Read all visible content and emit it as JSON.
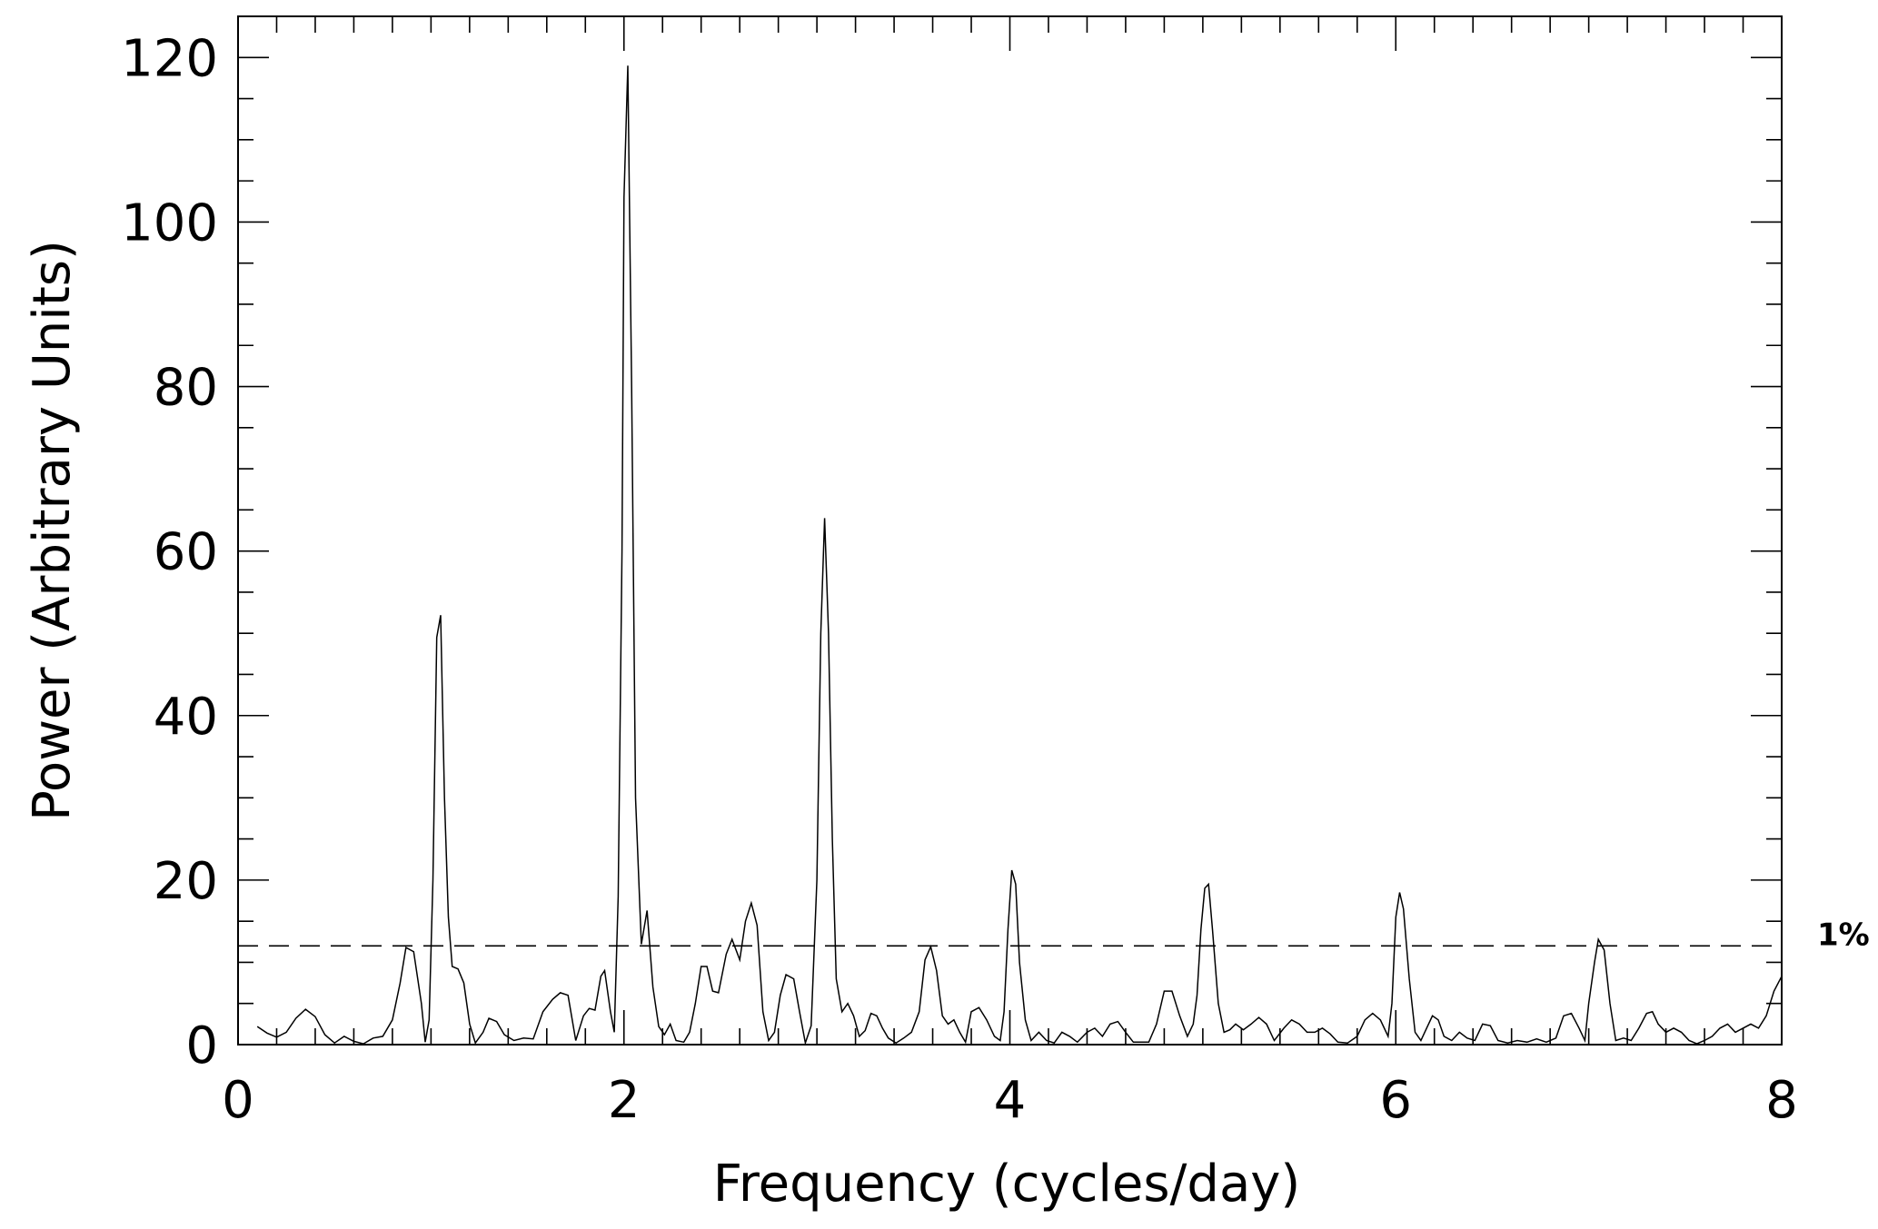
{
  "chart_data": {
    "type": "line",
    "title": "",
    "xlabel": "Frequency (cycles/day)",
    "ylabel": "Power (Arbitrary Units)",
    "xlim": [
      0,
      8
    ],
    "ylim": [
      0,
      125
    ],
    "x_ticks": [
      0,
      2,
      4,
      6,
      8
    ],
    "y_ticks": [
      0,
      20,
      40,
      60,
      80,
      100,
      120
    ],
    "x_minor_step": 0.2,
    "y_minor_step": 5,
    "grid": false,
    "threshold": {
      "label": "1%",
      "value": 12.0,
      "style": "dashed"
    },
    "series": [
      {
        "points": [
          [
            0.1,
            2.2
          ],
          [
            0.15,
            1.4
          ],
          [
            0.2,
            0.9
          ],
          [
            0.25,
            1.5
          ],
          [
            0.3,
            3.2
          ],
          [
            0.35,
            4.3
          ],
          [
            0.4,
            3.4
          ],
          [
            0.45,
            1.2
          ],
          [
            0.5,
            0.2
          ],
          [
            0.55,
            1.0
          ],
          [
            0.6,
            0.4
          ],
          [
            0.65,
            0.1
          ],
          [
            0.7,
            0.8
          ],
          [
            0.75,
            1.0
          ],
          [
            0.8,
            3.0
          ],
          [
            0.84,
            7.5
          ],
          [
            0.87,
            11.8
          ],
          [
            0.91,
            11.3
          ],
          [
            0.95,
            5.0
          ],
          [
            0.97,
            0.3
          ],
          [
            0.99,
            3.0
          ],
          [
            1.01,
            20.0
          ],
          [
            1.03,
            49.5
          ],
          [
            1.05,
            52.2
          ],
          [
            1.07,
            30.0
          ],
          [
            1.09,
            15.5
          ],
          [
            1.11,
            9.5
          ],
          [
            1.14,
            9.2
          ],
          [
            1.17,
            7.5
          ],
          [
            1.2,
            2.5
          ],
          [
            1.23,
            0.2
          ],
          [
            1.27,
            1.5
          ],
          [
            1.3,
            3.2
          ],
          [
            1.34,
            2.8
          ],
          [
            1.38,
            1.2
          ],
          [
            1.43,
            0.5
          ],
          [
            1.48,
            0.8
          ],
          [
            1.53,
            0.7
          ],
          [
            1.58,
            4.0
          ],
          [
            1.63,
            5.5
          ],
          [
            1.67,
            6.3
          ],
          [
            1.71,
            6.0
          ],
          [
            1.75,
            0.5
          ],
          [
            1.79,
            3.5
          ],
          [
            1.82,
            4.4
          ],
          [
            1.85,
            4.2
          ],
          [
            1.88,
            8.3
          ],
          [
            1.9,
            9.0
          ],
          [
            1.93,
            4.0
          ],
          [
            1.95,
            1.5
          ],
          [
            1.97,
            18.0
          ],
          [
            1.99,
            60.0
          ],
          [
            2.0,
            103.0
          ],
          [
            2.02,
            119.0
          ],
          [
            2.04,
            80.0
          ],
          [
            2.06,
            30.0
          ],
          [
            2.09,
            12.2
          ],
          [
            2.12,
            16.3
          ],
          [
            2.15,
            7.0
          ],
          [
            2.18,
            2.2
          ],
          [
            2.21,
            1.2
          ],
          [
            2.24,
            2.5
          ],
          [
            2.27,
            0.5
          ],
          [
            2.31,
            0.3
          ],
          [
            2.34,
            1.5
          ],
          [
            2.37,
            5.0
          ],
          [
            2.4,
            9.5
          ],
          [
            2.43,
            9.5
          ],
          [
            2.46,
            6.5
          ],
          [
            2.49,
            6.3
          ],
          [
            2.53,
            11.0
          ],
          [
            2.56,
            12.8
          ],
          [
            2.6,
            10.3
          ],
          [
            2.63,
            15.0
          ],
          [
            2.66,
            17.2
          ],
          [
            2.69,
            14.5
          ],
          [
            2.72,
            4.0
          ],
          [
            2.75,
            0.5
          ],
          [
            2.78,
            1.5
          ],
          [
            2.81,
            6.0
          ],
          [
            2.84,
            8.5
          ],
          [
            2.88,
            8.0
          ],
          [
            2.91,
            4.0
          ],
          [
            2.94,
            0.2
          ],
          [
            2.97,
            2.3
          ],
          [
            3.0,
            20.0
          ],
          [
            3.02,
            50.0
          ],
          [
            3.04,
            64.0
          ],
          [
            3.06,
            50.0
          ],
          [
            3.08,
            25.0
          ],
          [
            3.1,
            8.0
          ],
          [
            3.13,
            4.0
          ],
          [
            3.16,
            5.0
          ],
          [
            3.19,
            3.5
          ],
          [
            3.22,
            1.0
          ],
          [
            3.25,
            1.7
          ],
          [
            3.28,
            3.8
          ],
          [
            3.31,
            3.5
          ],
          [
            3.34,
            2.0
          ],
          [
            3.37,
            0.8
          ],
          [
            3.41,
            0.2
          ],
          [
            3.45,
            0.8
          ],
          [
            3.49,
            1.5
          ],
          [
            3.53,
            4.0
          ],
          [
            3.56,
            10.3
          ],
          [
            3.59,
            11.9
          ],
          [
            3.62,
            9.0
          ],
          [
            3.65,
            3.5
          ],
          [
            3.68,
            2.5
          ],
          [
            3.71,
            3.0
          ],
          [
            3.74,
            1.5
          ],
          [
            3.77,
            0.3
          ],
          [
            3.8,
            4.0
          ],
          [
            3.84,
            4.5
          ],
          [
            3.88,
            3.0
          ],
          [
            3.92,
            1.0
          ],
          [
            3.95,
            0.5
          ],
          [
            3.97,
            4.0
          ],
          [
            3.99,
            14.0
          ],
          [
            4.01,
            21.2
          ],
          [
            4.03,
            19.5
          ],
          [
            4.05,
            10.0
          ],
          [
            4.08,
            3.0
          ],
          [
            4.11,
            0.5
          ],
          [
            4.15,
            1.5
          ],
          [
            4.19,
            0.5
          ],
          [
            4.23,
            0.2
          ],
          [
            4.27,
            1.5
          ],
          [
            4.31,
            1.0
          ],
          [
            4.35,
            0.3
          ],
          [
            4.4,
            1.5
          ],
          [
            4.44,
            2.0
          ],
          [
            4.48,
            1.0
          ],
          [
            4.52,
            2.5
          ],
          [
            4.56,
            2.8
          ],
          [
            4.6,
            1.5
          ],
          [
            4.64,
            0.3
          ],
          [
            4.68,
            0.3
          ],
          [
            4.72,
            0.3
          ],
          [
            4.76,
            2.5
          ],
          [
            4.8,
            6.5
          ],
          [
            4.84,
            6.5
          ],
          [
            4.88,
            3.5
          ],
          [
            4.92,
            1.0
          ],
          [
            4.95,
            2.5
          ],
          [
            4.97,
            6.0
          ],
          [
            4.99,
            14.0
          ],
          [
            5.01,
            19.0
          ],
          [
            5.03,
            19.5
          ],
          [
            5.05,
            14.0
          ],
          [
            5.08,
            5.0
          ],
          [
            5.11,
            1.5
          ],
          [
            5.14,
            1.8
          ],
          [
            5.17,
            2.5
          ],
          [
            5.21,
            1.8
          ],
          [
            5.25,
            2.5
          ],
          [
            5.29,
            3.3
          ],
          [
            5.33,
            2.5
          ],
          [
            5.37,
            0.5
          ],
          [
            5.42,
            2.0
          ],
          [
            5.46,
            3.0
          ],
          [
            5.5,
            2.5
          ],
          [
            5.54,
            1.5
          ],
          [
            5.58,
            1.5
          ],
          [
            5.62,
            2.0
          ],
          [
            5.66,
            1.3
          ],
          [
            5.7,
            0.3
          ],
          [
            5.75,
            0.2
          ],
          [
            5.8,
            1.0
          ],
          [
            5.84,
            3.0
          ],
          [
            5.88,
            3.8
          ],
          [
            5.92,
            3.0
          ],
          [
            5.96,
            1.0
          ],
          [
            5.98,
            5.0
          ],
          [
            6.0,
            15.5
          ],
          [
            6.02,
            18.5
          ],
          [
            6.04,
            16.5
          ],
          [
            6.07,
            8.0
          ],
          [
            6.1,
            1.5
          ],
          [
            6.13,
            0.5
          ],
          [
            6.16,
            2.0
          ],
          [
            6.19,
            3.5
          ],
          [
            6.22,
            3.0
          ],
          [
            6.25,
            1.0
          ],
          [
            6.29,
            0.5
          ],
          [
            6.33,
            1.5
          ],
          [
            6.37,
            0.8
          ],
          [
            6.41,
            0.5
          ],
          [
            6.45,
            2.5
          ],
          [
            6.49,
            2.3
          ],
          [
            6.53,
            0.5
          ],
          [
            6.58,
            0.2
          ],
          [
            6.63,
            0.5
          ],
          [
            6.68,
            0.3
          ],
          [
            6.73,
            0.7
          ],
          [
            6.78,
            0.3
          ],
          [
            6.83,
            0.8
          ],
          [
            6.87,
            3.5
          ],
          [
            6.91,
            3.8
          ],
          [
            6.95,
            2.0
          ],
          [
            6.98,
            0.5
          ],
          [
            7.0,
            5.0
          ],
          [
            7.03,
            10.0
          ],
          [
            7.05,
            12.8
          ],
          [
            7.08,
            11.5
          ],
          [
            7.11,
            5.0
          ],
          [
            7.14,
            0.5
          ],
          [
            7.18,
            0.8
          ],
          [
            7.22,
            0.5
          ],
          [
            7.26,
            2.0
          ],
          [
            7.3,
            3.8
          ],
          [
            7.33,
            4.0
          ],
          [
            7.36,
            2.5
          ],
          [
            7.4,
            1.5
          ],
          [
            7.44,
            2.0
          ],
          [
            7.48,
            1.5
          ],
          [
            7.52,
            0.5
          ],
          [
            7.56,
            0.1
          ],
          [
            7.6,
            0.5
          ],
          [
            7.64,
            1.0
          ],
          [
            7.68,
            2.0
          ],
          [
            7.72,
            2.5
          ],
          [
            7.76,
            1.5
          ],
          [
            7.8,
            2.0
          ],
          [
            7.84,
            2.5
          ],
          [
            7.88,
            2.0
          ],
          [
            7.92,
            3.5
          ],
          [
            7.96,
            6.5
          ],
          [
            8.0,
            8.3
          ]
        ]
      }
    ]
  }
}
